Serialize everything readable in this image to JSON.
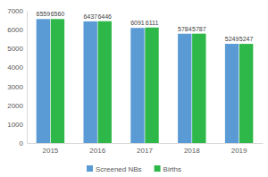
{
  "chart_data": {
    "type": "bar",
    "categories": [
      "2015",
      "2016",
      "2017",
      "2018",
      "2019"
    ],
    "series": [
      {
        "name": "Screened NBs",
        "color": "#5b9bd5",
        "values": [
          6559,
          6437,
          6091,
          5784,
          5249
        ]
      },
      {
        "name": "Births",
        "color": "#2fb84a",
        "values": [
          6560,
          6446,
          6111,
          5787,
          5247
        ]
      }
    ],
    "ylim": [
      0,
      7000
    ],
    "yticks": [
      0,
      1000,
      2000,
      3000,
      4000,
      5000,
      6000,
      7000
    ],
    "grid": false,
    "legend": "bottom",
    "data_labels": true
  }
}
